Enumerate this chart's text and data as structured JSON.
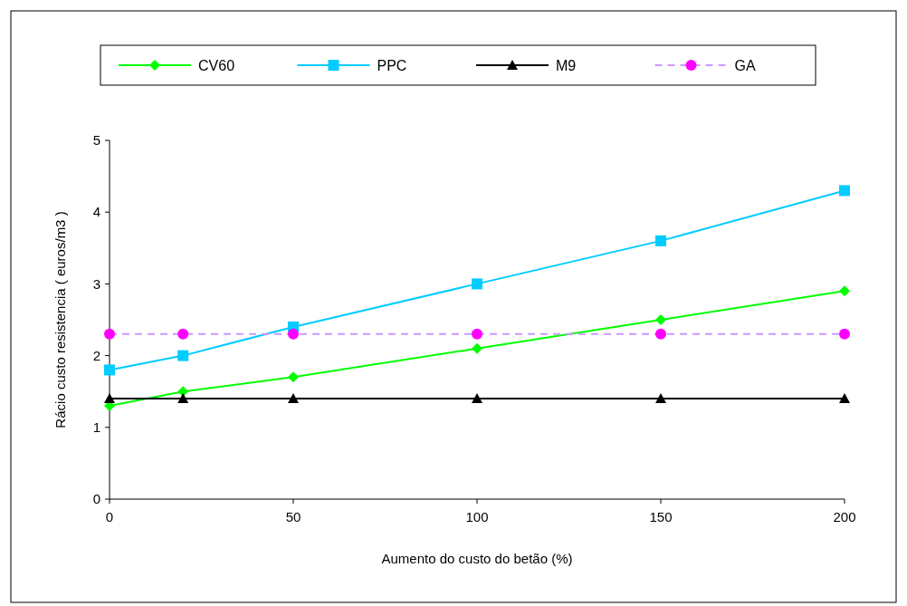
{
  "chart_data": {
    "type": "line",
    "xlabel": "Aumento do custo do betão (%)",
    "ylabel": "Rácio custo resistencia ( euros/m3 )",
    "xlim": [
      0,
      200
    ],
    "xticks": [
      0,
      50,
      100,
      150,
      200
    ],
    "ylim": [
      0,
      5
    ],
    "yticks": [
      0,
      1,
      2,
      3,
      4,
      5
    ],
    "grid": false,
    "legend": "top",
    "series": [
      {
        "name": "CV60",
        "color": "#00ff00",
        "marker": "diamond",
        "line_style": "solid",
        "x": [
          0,
          20,
          50,
          100,
          150,
          200
        ],
        "values": [
          1.3,
          1.5,
          1.7,
          2.1,
          2.5,
          2.9
        ]
      },
      {
        "name": "PPC",
        "color": "#00ccff",
        "marker": "square",
        "line_style": "solid",
        "x": [
          0,
          20,
          50,
          100,
          150,
          200
        ],
        "values": [
          1.8,
          2.0,
          2.4,
          3.0,
          3.6,
          4.3
        ]
      },
      {
        "name": "M9",
        "color": "#000000",
        "marker": "triangle",
        "line_style": "solid",
        "x": [
          0,
          20,
          50,
          100,
          150,
          200
        ],
        "values": [
          1.4,
          1.4,
          1.4,
          1.4,
          1.4,
          1.4
        ]
      },
      {
        "name": "GA",
        "color": "#cc99ff",
        "colors": [
          "#ff00ff",
          "#ff00ff",
          "#ff00ff",
          "#ff00ff",
          "#ff00ff",
          "#ff00ff"
        ],
        "marker": "circle",
        "line_style": "dashed",
        "x": [
          0,
          20,
          50,
          100,
          150,
          200
        ],
        "values": [
          2.3,
          2.3,
          2.3,
          2.3,
          2.3,
          2.3
        ]
      }
    ]
  }
}
